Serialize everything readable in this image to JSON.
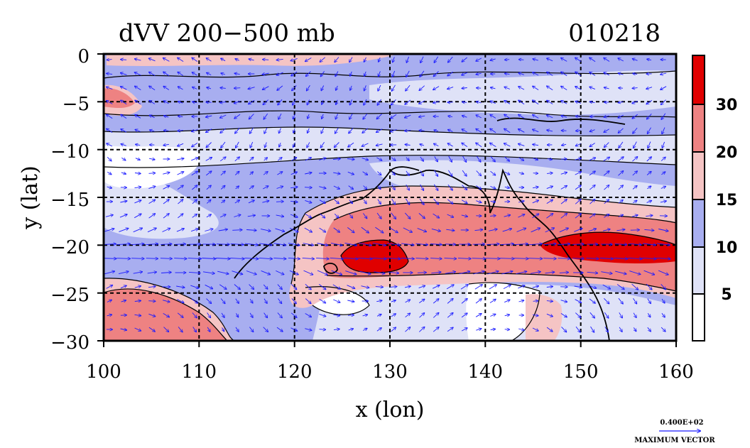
{
  "chart_data": {
    "type": "heatmap",
    "title": "dVV 200−500 mb",
    "date_label": "010218",
    "xlabel": "x (lon)",
    "ylabel": "y (lat)",
    "xlim": [
      100,
      160
    ],
    "ylim": [
      -30,
      0
    ],
    "x_ticks": [
      "100",
      "110",
      "120",
      "130",
      "140",
      "150",
      "160"
    ],
    "y_ticks": [
      "0",
      "−5",
      "−10",
      "−15",
      "−20",
      "−25",
      "−30"
    ],
    "grid": true,
    "colorbar": {
      "placement": "right",
      "levels": [
        0,
        5,
        10,
        15,
        20,
        30,
        40
      ],
      "labels": [
        "5",
        "10",
        "15",
        "20",
        "30"
      ],
      "colors": [
        "#ffffff",
        "#dfe2f7",
        "#a8aef0",
        "#f5c4c4",
        "#ee8282",
        "#e00000"
      ]
    },
    "vector_legend": {
      "value": "0.400E+02",
      "label": "MAXIMUM VECTOR",
      "color": "#1a1aff"
    },
    "regions": [
      {
        "name": "core-jet-west",
        "lon": [
          125.5,
          132
        ],
        "lat": [
          -19.5,
          -22.6
        ],
        "value": 33
      },
      {
        "name": "core-jet-east",
        "lon": [
          145.5,
          160
        ],
        "lat": [
          -20,
          -22.5
        ],
        "value": 33
      },
      {
        "name": "jet-band",
        "lon": [
          122,
          160
        ],
        "lat": [
          -17,
          -24.5
        ],
        "value": 25
      },
      {
        "name": "jet-envelope",
        "lon": [
          118,
          160
        ],
        "lat": [
          -13.5,
          -25.5
        ],
        "value": 17
      },
      {
        "name": "southwest-jet",
        "lon": [
          100,
          115
        ],
        "lat": [
          -24,
          -30
        ],
        "value": 22
      },
      {
        "name": "northwest-patch",
        "lon": [
          100,
          104
        ],
        "lat": [
          -2,
          -5
        ],
        "value": 22
      },
      {
        "name": "north-band",
        "lon": [
          105,
          125
        ],
        "lat": [
          0,
          -2
        ],
        "value": 17
      }
    ]
  }
}
